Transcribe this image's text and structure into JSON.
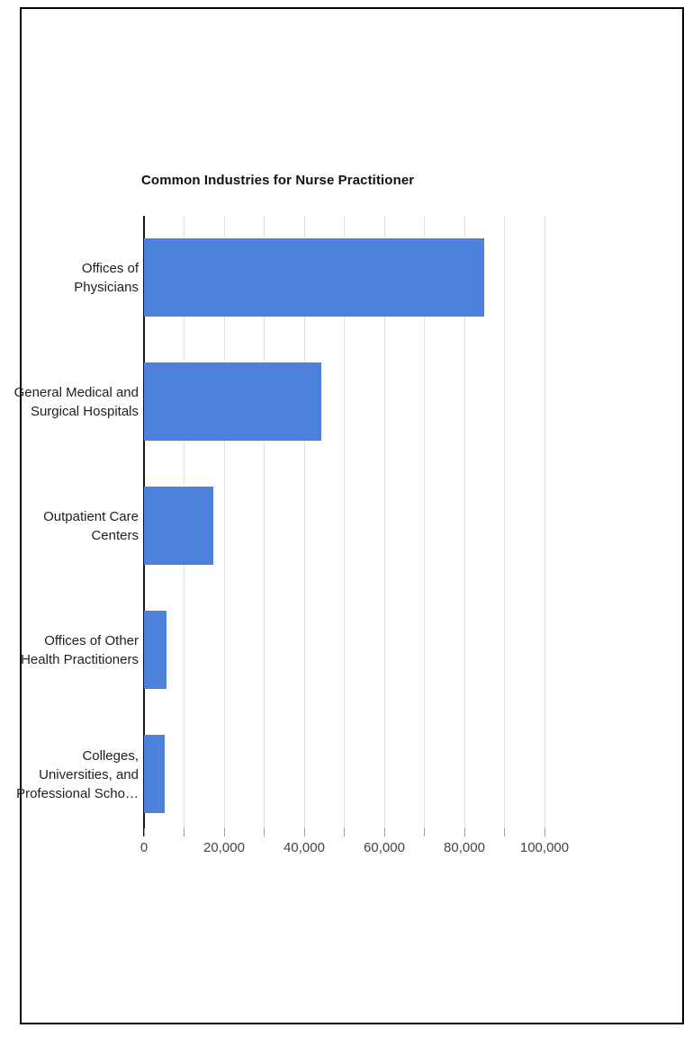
{
  "frame": {
    "border_color": "#000000",
    "background_color": "#ffffff"
  },
  "chart_data": {
    "type": "bar",
    "orientation": "horizontal",
    "title": "Common Industries for Nurse Practitioner",
    "categories": [
      "Offices of\nPhysicians",
      "General Medical and\nSurgical Hospitals",
      "Outpatient Care\nCenters",
      "Offices of Other\nHealth Practitioners",
      "Colleges,\nUniversities, and\nProfessional Scho…"
    ],
    "values": [
      85000,
      44300,
      17300,
      5600,
      5200
    ],
    "bar_color": "#4e81dc",
    "xlabel": "",
    "ylabel": "",
    "xlim": [
      0,
      100000
    ],
    "gridline_values": [
      10000,
      20000,
      30000,
      40000,
      50000,
      60000,
      70000,
      80000,
      90000,
      100000
    ],
    "x_tick_values": [
      0,
      10000,
      20000,
      30000,
      40000,
      50000,
      60000,
      70000,
      80000,
      90000,
      100000
    ],
    "x_tick_labels": [
      {
        "value": 0,
        "label": "0"
      },
      {
        "value": 20000,
        "label": "20,000"
      },
      {
        "value": 40000,
        "label": "40,000"
      },
      {
        "value": 60000,
        "label": "60,000"
      },
      {
        "value": 80000,
        "label": "80,000"
      },
      {
        "value": 100000,
        "label": "100,000"
      }
    ],
    "grid": "vertical-only",
    "legend": "none",
    "axis_color": "#141414",
    "gridline_color": "#e3e3e3",
    "tick_color": "#9e9e9e",
    "category_label_color": "#1f1f1f",
    "tick_label_color": "#444444",
    "title_color": "#111111"
  }
}
